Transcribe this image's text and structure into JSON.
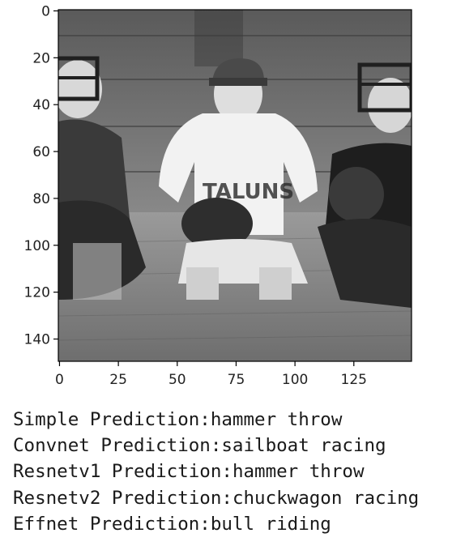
{
  "figure": {
    "image_subject": "black-and-white photo of three baseball players crouching on grass",
    "axes": {
      "x_ticks": [
        0,
        25,
        50,
        75,
        100,
        125
      ],
      "y_ticks": [
        0,
        20,
        40,
        60,
        80,
        100,
        120,
        140
      ],
      "x_range": [
        -0.5,
        149.5
      ],
      "y_range": [
        149.5,
        -0.5
      ]
    },
    "colors": {
      "axis": "#000000",
      "text": "#222222"
    }
  },
  "predictions": [
    {
      "model": "Simple",
      "label": "hammer throw"
    },
    {
      "model": "Convnet",
      "label": "sailboat racing"
    },
    {
      "model": "Resnetv1",
      "label": "hammer throw"
    },
    {
      "model": "Resnetv2",
      "label": "chuckwagon racing"
    },
    {
      "model": "Effnet",
      "label": "bull riding"
    }
  ],
  "prediction_suffix": " Prediction:"
}
